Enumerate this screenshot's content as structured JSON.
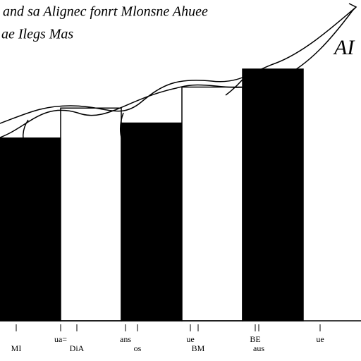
{
  "chart_data": {
    "type": "bar",
    "title": "and sa Alignec fonrt Mlonsne Ahuee",
    "subtitle": "ae Ilegs Mas",
    "annotation": "AI",
    "categories": [
      "MI",
      "DiA",
      "os",
      "BM",
      "aus"
    ],
    "values": [
      61,
      71,
      66,
      78,
      84
    ],
    "colors": [
      "#000000",
      "#ffffff",
      "#000000",
      "#ffffff",
      "#000000"
    ],
    "ylim": [
      0,
      100
    ],
    "extra_labels": [
      "ua=",
      "ans",
      "ue",
      "BE",
      "ue"
    ]
  }
}
